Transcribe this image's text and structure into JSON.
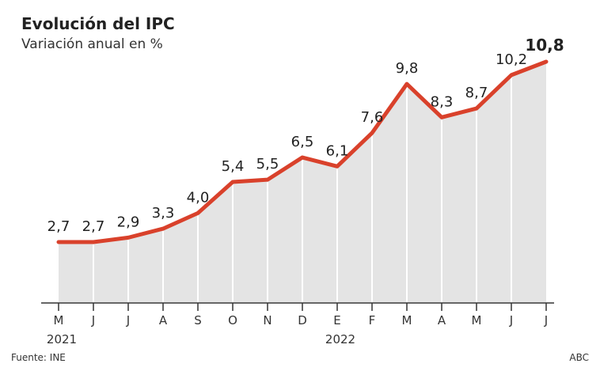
{
  "title": "Evolución del IPC",
  "subtitle": "Variación anual en %",
  "source": "Fuente: INE",
  "credit": "ABC",
  "chart_data": {
    "type": "area",
    "categories": [
      "M",
      "J",
      "J",
      "A",
      "S",
      "O",
      "N",
      "D",
      "E",
      "F",
      "M",
      "A",
      "M",
      "J",
      "J"
    ],
    "year_labels": [
      {
        "index": 0,
        "label": "2021"
      },
      {
        "index": 8,
        "label": "2022"
      }
    ],
    "values": [
      2.7,
      2.7,
      2.9,
      3.3,
      4.0,
      5.4,
      5.5,
      6.5,
      6.1,
      7.6,
      9.8,
      8.3,
      8.7,
      10.2,
      10.8
    ],
    "data_labels": [
      "2,7",
      "2,7",
      "2,9",
      "3,3",
      "4,0",
      "5,4",
      "5,5",
      "6,5",
      "6,1",
      "7,6",
      "9,8",
      "8,3",
      "8,7",
      "10,2",
      "10,8"
    ],
    "ylim": [
      0,
      10.8
    ],
    "grid": false,
    "colors": {
      "line": "#d9412b",
      "area": "#e4e4e4"
    }
  }
}
